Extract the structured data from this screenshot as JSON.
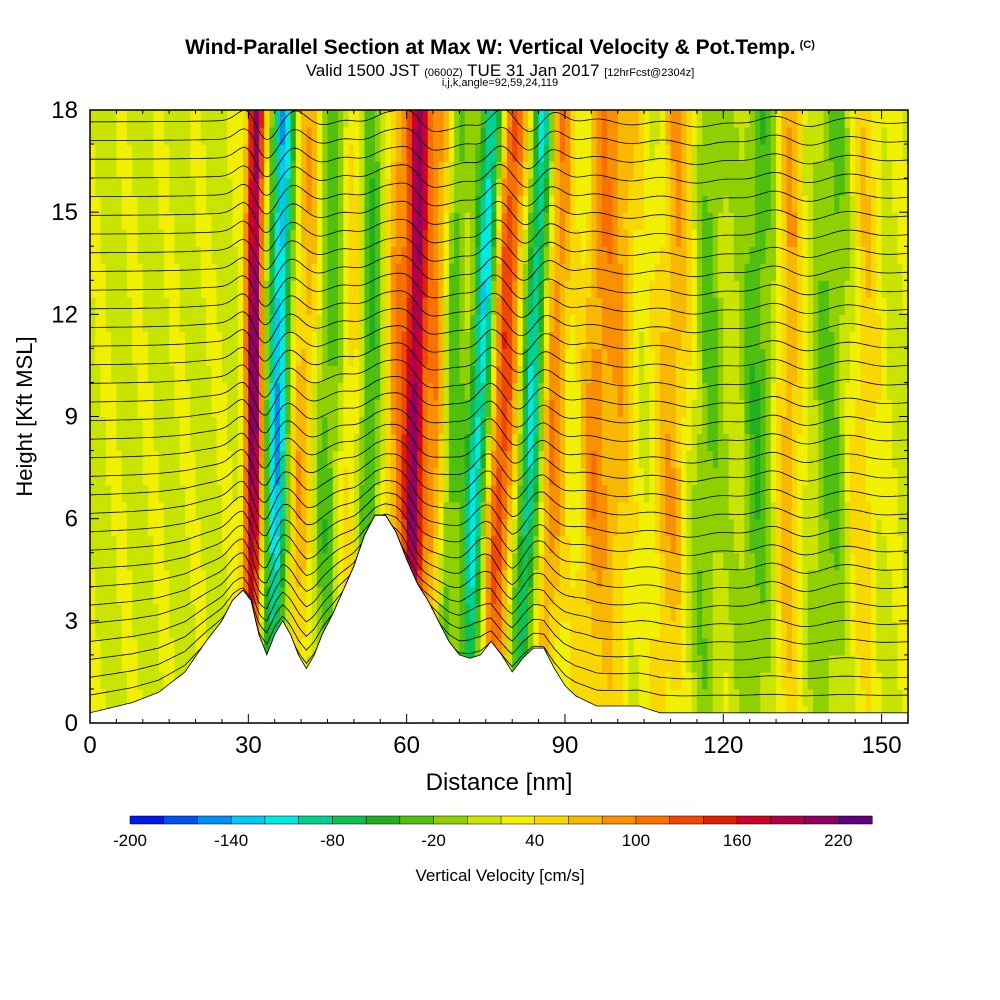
{
  "title": {
    "line1": "Wind-Parallel Section at Max W: Vertical Velocity & Pot.Temp.",
    "line1_unit": "(C)",
    "line2_prefix": "Valid 1500 JST",
    "line2_zulu": "(0600Z)",
    "line2_date": "TUE 31 Jan 2017",
    "line2_fcst": "[12hrFcst@2304z]",
    "line3": "i,j,k,angle=92,59,24,119"
  },
  "chart_data": {
    "type": "heatmap",
    "xlabel": "Distance [nm]",
    "ylabel": "Height [Kft MSL]",
    "xlim": [
      0,
      155
    ],
    "ylim": [
      0,
      18
    ],
    "xticks": [
      0,
      30,
      60,
      90,
      120,
      150
    ],
    "yticks": [
      0,
      3,
      6,
      9,
      12,
      15,
      18
    ],
    "colorbar": {
      "label": "Vertical Velocity [cm/s]",
      "levels": [
        -200,
        -180,
        -160,
        -140,
        -120,
        -100,
        -80,
        -60,
        -40,
        -20,
        0,
        20,
        40,
        60,
        80,
        100,
        120,
        140,
        160,
        180,
        200,
        220,
        240
      ],
      "tick_labels": [
        -200,
        -140,
        -80,
        -20,
        40,
        100,
        160,
        220
      ],
      "colors": [
        "#0018e8",
        "#0050f0",
        "#0090f0",
        "#00c8f0",
        "#00e8e0",
        "#00d090",
        "#10c050",
        "#20b020",
        "#50c010",
        "#90d000",
        "#c8e400",
        "#f0f000",
        "#f8d800",
        "#f8b800",
        "#f89000",
        "#f87000",
        "#f04800",
        "#e02000",
        "#d00028",
        "#b00048",
        "#900060",
        "#600080"
      ]
    },
    "terrain": {
      "x": [
        0,
        8,
        13,
        18,
        22,
        25,
        27,
        29,
        30.5,
        32,
        33.5,
        35,
        36.5,
        38,
        39.5,
        41,
        42.5,
        44,
        46,
        48,
        50,
        52,
        54,
        56,
        58,
        60,
        62,
        64,
        66,
        68,
        70,
        72,
        74,
        76,
        78,
        80,
        82,
        84,
        86,
        88,
        90,
        92,
        96,
        100,
        104,
        108,
        112,
        116,
        120,
        130,
        140,
        150,
        155
      ],
      "height_kft": [
        0.3,
        0.6,
        0.9,
        1.5,
        2.4,
        3.0,
        3.6,
        3.9,
        3.6,
        2.6,
        2.0,
        2.6,
        3.0,
        2.6,
        2.0,
        1.6,
        2.0,
        2.6,
        3.2,
        3.9,
        4.6,
        5.5,
        6.1,
        6.1,
        5.6,
        4.8,
        4.1,
        3.6,
        3.0,
        2.4,
        2.0,
        1.9,
        2.0,
        2.4,
        2.0,
        1.5,
        1.9,
        2.2,
        2.2,
        1.6,
        1.1,
        0.8,
        0.5,
        0.5,
        0.5,
        0.3,
        0.3,
        0.3,
        0.3,
        0.3,
        0.3,
        0.3,
        0.3
      ]
    },
    "w_features": [
      {
        "x": 30.5,
        "amp": 200,
        "width": 1.6,
        "lean": 0.05
      },
      {
        "x": 34.5,
        "amp": -150,
        "width": 2.0,
        "lean": 0.12
      },
      {
        "x": 38.5,
        "amp": 60,
        "width": 2.5,
        "lean": 0.2
      },
      {
        "x": 44,
        "amp": -50,
        "width": 3.0,
        "lean": 0.15
      },
      {
        "x": 48.5,
        "amp": 50,
        "width": 2.5,
        "lean": 0.1
      },
      {
        "x": 52,
        "amp": -60,
        "width": 2.5,
        "lean": 0.08
      },
      {
        "x": 57.5,
        "amp": 80,
        "width": 2.5,
        "lean": 0.1
      },
      {
        "x": 60.5,
        "amp": 170,
        "width": 1.8,
        "lean": 0.12
      },
      {
        "x": 64,
        "amp": 80,
        "width": 2.5,
        "lean": 0.15
      },
      {
        "x": 67,
        "amp": -60,
        "width": 2.0,
        "lean": 0.15
      },
      {
        "x": 71,
        "amp": -130,
        "width": 2.0,
        "lean": 0.3
      },
      {
        "x": 76,
        "amp": 120,
        "width": 2.4,
        "lean": 0.25
      },
      {
        "x": 81.5,
        "amp": -120,
        "width": 2.0,
        "lean": 0.25
      },
      {
        "x": 86,
        "amp": 80,
        "width": 2.5,
        "lean": 0.2
      },
      {
        "x": 94,
        "amp": 70,
        "width": 3.0,
        "lean": 0.2
      },
      {
        "x": 99,
        "amp": 50,
        "width": 3.0,
        "lean": 0.15
      },
      {
        "x": 109,
        "amp": 60,
        "width": 3.5,
        "lean": 0.15
      },
      {
        "x": 116,
        "amp": -40,
        "width": 3.0,
        "lean": 0.1
      },
      {
        "x": 126,
        "amp": -50,
        "width": 3.0,
        "lean": 0.05
      },
      {
        "x": 132,
        "amp": 60,
        "width": 2.5,
        "lean": 0.05
      },
      {
        "x": 140,
        "amp": -40,
        "width": 3.5,
        "lean": 0.05
      },
      {
        "x": 146,
        "amp": 40,
        "width": 3.0,
        "lean": 0.05
      }
    ],
    "theta_contours": {
      "bottom_height_kft": 0.6,
      "spacing_kft": 0.55,
      "count": 32
    }
  }
}
